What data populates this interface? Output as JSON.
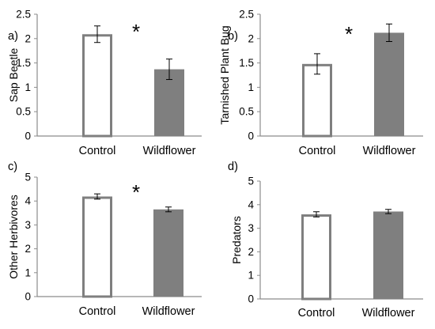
{
  "colors": {
    "control_edge": "#7f7f7f",
    "control_fill": "#ffffff",
    "wildflower_fill": "#7f7f7f",
    "axis": "#8c8c8c"
  },
  "chart_data": [
    {
      "panel": "a)",
      "type": "bar",
      "categories": [
        "Control",
        "Wildflower"
      ],
      "values": [
        2.09,
        1.37
      ],
      "errors": [
        0.17,
        0.21
      ],
      "ylabel": "Sap Beetle",
      "ylim": [
        0,
        2.5
      ],
      "yticks": [
        "0",
        "0.5",
        "1",
        "1.5",
        "2",
        "2.5"
      ],
      "annotation": "*"
    },
    {
      "panel": "b)",
      "type": "bar",
      "categories": [
        "Control",
        "Wildflower"
      ],
      "values": [
        1.48,
        2.12
      ],
      "errors": [
        0.21,
        0.18
      ],
      "ylabel": "Tarnished Plant Bug",
      "ylim": [
        0,
        2.5
      ],
      "yticks": [
        "0",
        "0.5",
        "1",
        "1.5",
        "2",
        "2.5"
      ],
      "annotation": "*"
    },
    {
      "panel": "c)",
      "type": "bar",
      "categories": [
        "Control",
        "Wildflower"
      ],
      "values": [
        4.19,
        3.65
      ],
      "errors": [
        0.11,
        0.1
      ],
      "ylabel": "Other Herbivores",
      "ylim": [
        0,
        5
      ],
      "yticks": [
        "0",
        "1",
        "2",
        "3",
        "4",
        "5"
      ],
      "annotation": "*"
    },
    {
      "panel": "d)",
      "type": "bar",
      "categories": [
        "Control",
        "Wildflower"
      ],
      "values": [
        3.59,
        3.71
      ],
      "errors": [
        0.11,
        0.09
      ],
      "ylabel": "Predators",
      "ylim": [
        0,
        5
      ],
      "yticks": [
        "0",
        "1",
        "2",
        "3",
        "4",
        "5"
      ],
      "annotation": ""
    }
  ]
}
